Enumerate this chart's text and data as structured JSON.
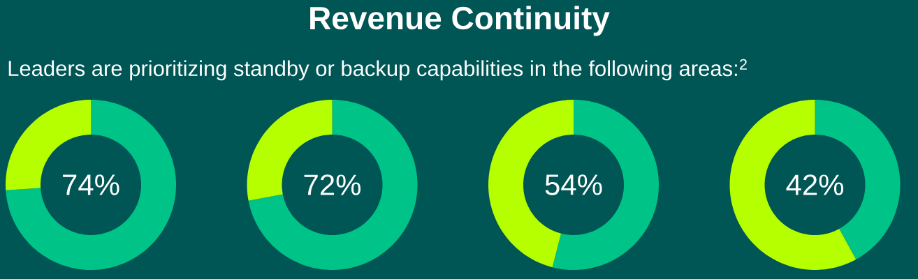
{
  "chart_data": [
    {
      "type": "donut",
      "title": "Revenue Continuity",
      "subtitle": "Leaders are prioritizing standby or backup capabilities in the following areas:$^{2}$",
      "categories": [
        null,
        null
      ],
      "values": [
        74,
        26
      ],
      "colors": [
        "#00c487",
        "#b6ff00"
      ],
      "annotations": [
        "74%"
      ]
    },
    {
      "type": "donut",
      "categories": [
        null,
        null
      ],
      "values": [
        72,
        28
      ],
      "colors": [
        "#00c487",
        "#b6ff00"
      ],
      "annotations": [
        "72%"
      ]
    },
    {
      "type": "donut",
      "categories": [
        null,
        null
      ],
      "values": [
        54,
        46
      ],
      "colors": [
        "#00c487",
        "#b6ff00"
      ],
      "annotations": [
        "54%"
      ]
    },
    {
      "type": "donut",
      "categories": [
        null,
        null
      ],
      "values": [
        42,
        58
      ],
      "colors": [
        "#00c487",
        "#b6ff00"
      ],
      "annotations": [
        "42%"
      ]
    }
  ]
}
